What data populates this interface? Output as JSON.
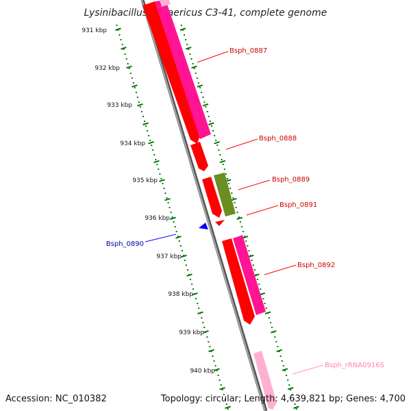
{
  "title": "Lysinibacillus sphaericus C3-41, complete genome",
  "accession": "Accession: NC_010382",
  "topology": "Topology: circular; Length: 4,639,821 bp; Genes: 4,700",
  "colors": {
    "backbone": "#808080",
    "gene_red": "#ff0000",
    "gene_pink": "#ff1493",
    "gene_olive": "#6b8e23",
    "gene_blue": "#0000ff",
    "rrna_pink": "#ffb0d0",
    "tick_green": "#007700",
    "label_red": "#cc0000",
    "label_blue": "#0000aa",
    "label_pink": "#ff80b0"
  },
  "kbp_ticks": [
    "931 kbp",
    "932 kbp",
    "933 kbp",
    "934 kbp",
    "935 kbp",
    "936 kbp",
    "937 kbp",
    "938 kbp",
    "939 kbp",
    "940 kbp"
  ],
  "gene_labels": [
    {
      "text": "Bsph_0887",
      "color_key": "label_red"
    },
    {
      "text": "Bsph_0888",
      "color_key": "label_red"
    },
    {
      "text": "Bsph_0889",
      "color_key": "label_red"
    },
    {
      "text": "Bsph_0891",
      "color_key": "label_red"
    },
    {
      "text": "Bsph_0890",
      "color_key": "label_blue"
    },
    {
      "text": "Bsph_0892",
      "color_key": "label_red"
    },
    {
      "text": "Bsph_rRNA0916S",
      "color_key": "label_pink"
    }
  ]
}
